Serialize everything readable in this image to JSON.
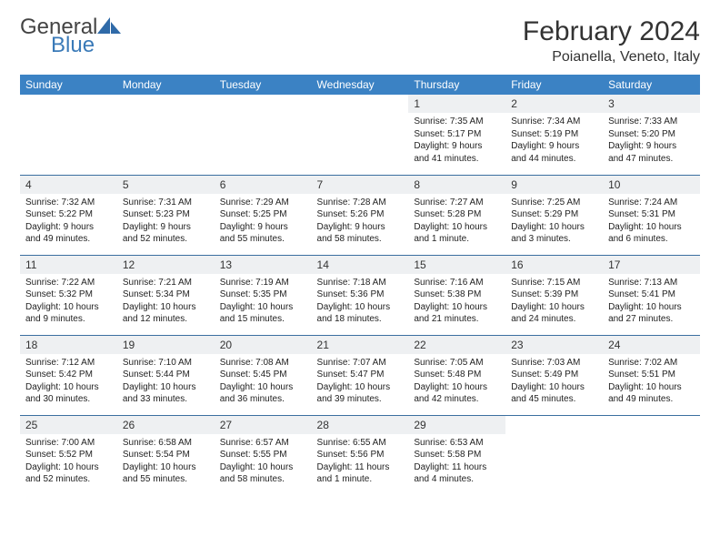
{
  "brand": {
    "name1": "General",
    "name2": "Blue"
  },
  "title": "February 2024",
  "location": "Poianella, Veneto, Italy",
  "colors": {
    "header_bg": "#3b82c4",
    "header_text": "#ffffff",
    "row_border": "#3b6fa0",
    "daynum_bg": "#eef0f2",
    "brand_blue": "#3a7ab8"
  },
  "dayNames": [
    "Sunday",
    "Monday",
    "Tuesday",
    "Wednesday",
    "Thursday",
    "Friday",
    "Saturday"
  ],
  "weeks": [
    [
      {
        "day": "",
        "sunrise": "",
        "sunset": "",
        "daylight1": "",
        "daylight2": ""
      },
      {
        "day": "",
        "sunrise": "",
        "sunset": "",
        "daylight1": "",
        "daylight2": ""
      },
      {
        "day": "",
        "sunrise": "",
        "sunset": "",
        "daylight1": "",
        "daylight2": ""
      },
      {
        "day": "",
        "sunrise": "",
        "sunset": "",
        "daylight1": "",
        "daylight2": ""
      },
      {
        "day": "1",
        "sunrise": "Sunrise: 7:35 AM",
        "sunset": "Sunset: 5:17 PM",
        "daylight1": "Daylight: 9 hours",
        "daylight2": "and 41 minutes."
      },
      {
        "day": "2",
        "sunrise": "Sunrise: 7:34 AM",
        "sunset": "Sunset: 5:19 PM",
        "daylight1": "Daylight: 9 hours",
        "daylight2": "and 44 minutes."
      },
      {
        "day": "3",
        "sunrise": "Sunrise: 7:33 AM",
        "sunset": "Sunset: 5:20 PM",
        "daylight1": "Daylight: 9 hours",
        "daylight2": "and 47 minutes."
      }
    ],
    [
      {
        "day": "4",
        "sunrise": "Sunrise: 7:32 AM",
        "sunset": "Sunset: 5:22 PM",
        "daylight1": "Daylight: 9 hours",
        "daylight2": "and 49 minutes."
      },
      {
        "day": "5",
        "sunrise": "Sunrise: 7:31 AM",
        "sunset": "Sunset: 5:23 PM",
        "daylight1": "Daylight: 9 hours",
        "daylight2": "and 52 minutes."
      },
      {
        "day": "6",
        "sunrise": "Sunrise: 7:29 AM",
        "sunset": "Sunset: 5:25 PM",
        "daylight1": "Daylight: 9 hours",
        "daylight2": "and 55 minutes."
      },
      {
        "day": "7",
        "sunrise": "Sunrise: 7:28 AM",
        "sunset": "Sunset: 5:26 PM",
        "daylight1": "Daylight: 9 hours",
        "daylight2": "and 58 minutes."
      },
      {
        "day": "8",
        "sunrise": "Sunrise: 7:27 AM",
        "sunset": "Sunset: 5:28 PM",
        "daylight1": "Daylight: 10 hours",
        "daylight2": "and 1 minute."
      },
      {
        "day": "9",
        "sunrise": "Sunrise: 7:25 AM",
        "sunset": "Sunset: 5:29 PM",
        "daylight1": "Daylight: 10 hours",
        "daylight2": "and 3 minutes."
      },
      {
        "day": "10",
        "sunrise": "Sunrise: 7:24 AM",
        "sunset": "Sunset: 5:31 PM",
        "daylight1": "Daylight: 10 hours",
        "daylight2": "and 6 minutes."
      }
    ],
    [
      {
        "day": "11",
        "sunrise": "Sunrise: 7:22 AM",
        "sunset": "Sunset: 5:32 PM",
        "daylight1": "Daylight: 10 hours",
        "daylight2": "and 9 minutes."
      },
      {
        "day": "12",
        "sunrise": "Sunrise: 7:21 AM",
        "sunset": "Sunset: 5:34 PM",
        "daylight1": "Daylight: 10 hours",
        "daylight2": "and 12 minutes."
      },
      {
        "day": "13",
        "sunrise": "Sunrise: 7:19 AM",
        "sunset": "Sunset: 5:35 PM",
        "daylight1": "Daylight: 10 hours",
        "daylight2": "and 15 minutes."
      },
      {
        "day": "14",
        "sunrise": "Sunrise: 7:18 AM",
        "sunset": "Sunset: 5:36 PM",
        "daylight1": "Daylight: 10 hours",
        "daylight2": "and 18 minutes."
      },
      {
        "day": "15",
        "sunrise": "Sunrise: 7:16 AM",
        "sunset": "Sunset: 5:38 PM",
        "daylight1": "Daylight: 10 hours",
        "daylight2": "and 21 minutes."
      },
      {
        "day": "16",
        "sunrise": "Sunrise: 7:15 AM",
        "sunset": "Sunset: 5:39 PM",
        "daylight1": "Daylight: 10 hours",
        "daylight2": "and 24 minutes."
      },
      {
        "day": "17",
        "sunrise": "Sunrise: 7:13 AM",
        "sunset": "Sunset: 5:41 PM",
        "daylight1": "Daylight: 10 hours",
        "daylight2": "and 27 minutes."
      }
    ],
    [
      {
        "day": "18",
        "sunrise": "Sunrise: 7:12 AM",
        "sunset": "Sunset: 5:42 PM",
        "daylight1": "Daylight: 10 hours",
        "daylight2": "and 30 minutes."
      },
      {
        "day": "19",
        "sunrise": "Sunrise: 7:10 AM",
        "sunset": "Sunset: 5:44 PM",
        "daylight1": "Daylight: 10 hours",
        "daylight2": "and 33 minutes."
      },
      {
        "day": "20",
        "sunrise": "Sunrise: 7:08 AM",
        "sunset": "Sunset: 5:45 PM",
        "daylight1": "Daylight: 10 hours",
        "daylight2": "and 36 minutes."
      },
      {
        "day": "21",
        "sunrise": "Sunrise: 7:07 AM",
        "sunset": "Sunset: 5:47 PM",
        "daylight1": "Daylight: 10 hours",
        "daylight2": "and 39 minutes."
      },
      {
        "day": "22",
        "sunrise": "Sunrise: 7:05 AM",
        "sunset": "Sunset: 5:48 PM",
        "daylight1": "Daylight: 10 hours",
        "daylight2": "and 42 minutes."
      },
      {
        "day": "23",
        "sunrise": "Sunrise: 7:03 AM",
        "sunset": "Sunset: 5:49 PM",
        "daylight1": "Daylight: 10 hours",
        "daylight2": "and 45 minutes."
      },
      {
        "day": "24",
        "sunrise": "Sunrise: 7:02 AM",
        "sunset": "Sunset: 5:51 PM",
        "daylight1": "Daylight: 10 hours",
        "daylight2": "and 49 minutes."
      }
    ],
    [
      {
        "day": "25",
        "sunrise": "Sunrise: 7:00 AM",
        "sunset": "Sunset: 5:52 PM",
        "daylight1": "Daylight: 10 hours",
        "daylight2": "and 52 minutes."
      },
      {
        "day": "26",
        "sunrise": "Sunrise: 6:58 AM",
        "sunset": "Sunset: 5:54 PM",
        "daylight1": "Daylight: 10 hours",
        "daylight2": "and 55 minutes."
      },
      {
        "day": "27",
        "sunrise": "Sunrise: 6:57 AM",
        "sunset": "Sunset: 5:55 PM",
        "daylight1": "Daylight: 10 hours",
        "daylight2": "and 58 minutes."
      },
      {
        "day": "28",
        "sunrise": "Sunrise: 6:55 AM",
        "sunset": "Sunset: 5:56 PM",
        "daylight1": "Daylight: 11 hours",
        "daylight2": "and 1 minute."
      },
      {
        "day": "29",
        "sunrise": "Sunrise: 6:53 AM",
        "sunset": "Sunset: 5:58 PM",
        "daylight1": "Daylight: 11 hours",
        "daylight2": "and 4 minutes."
      },
      {
        "day": "",
        "sunrise": "",
        "sunset": "",
        "daylight1": "",
        "daylight2": ""
      },
      {
        "day": "",
        "sunrise": "",
        "sunset": "",
        "daylight1": "",
        "daylight2": ""
      }
    ]
  ]
}
